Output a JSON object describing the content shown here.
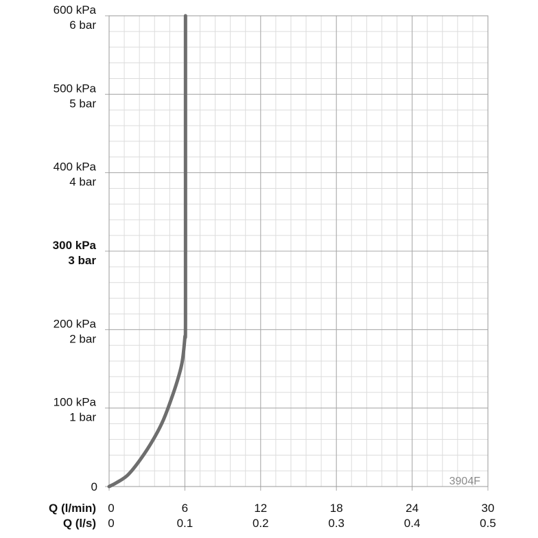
{
  "chart_data": {
    "type": "line",
    "title": "",
    "code_label": "3904F",
    "x_axis": {
      "title_primary": "Q (l/min)",
      "title_secondary": "Q (l/s)",
      "range": [
        0,
        30
      ],
      "ticks": [
        0,
        6,
        12,
        18,
        24,
        30
      ],
      "tick_labels_primary": [
        "0",
        "6",
        "12",
        "18",
        "24",
        "30"
      ],
      "tick_labels_secondary": [
        "0",
        "0.1",
        "0.2",
        "0.3",
        "0.4",
        "0.5"
      ],
      "minor_step": 1.2
    },
    "y_axis": {
      "unit": "kPa",
      "range": [
        0,
        600
      ],
      "ticks": [
        {
          "value": 0,
          "label_kpa": "0",
          "label_bar": "",
          "bold": false
        },
        {
          "value": 100,
          "label_kpa": "100 kPa",
          "label_bar": "1 bar",
          "bold": false
        },
        {
          "value": 200,
          "label_kpa": "200 kPa",
          "label_bar": "2 bar",
          "bold": false
        },
        {
          "value": 300,
          "label_kpa": "300 kPa",
          "label_bar": "3 bar",
          "bold": true
        },
        {
          "value": 400,
          "label_kpa": "400 kPa",
          "label_bar": "4 bar",
          "bold": false
        },
        {
          "value": 500,
          "label_kpa": "500 kPa",
          "label_bar": "5 bar",
          "bold": false
        },
        {
          "value": 600,
          "label_kpa": "600 kPa",
          "label_bar": "6 bar",
          "bold": false
        }
      ],
      "minor_step": 20
    },
    "grid": true,
    "series": [
      {
        "color": "#6e6e6e",
        "x": [
          0,
          0.6,
          1.5,
          2.5,
          3.5,
          4.3,
          5.0,
          5.5,
          5.8,
          6.0,
          6.05,
          6.05,
          6.05
        ],
        "y": [
          0,
          5,
          15,
          35,
          60,
          85,
          115,
          140,
          160,
          190,
          210,
          400,
          600
        ]
      }
    ]
  }
}
